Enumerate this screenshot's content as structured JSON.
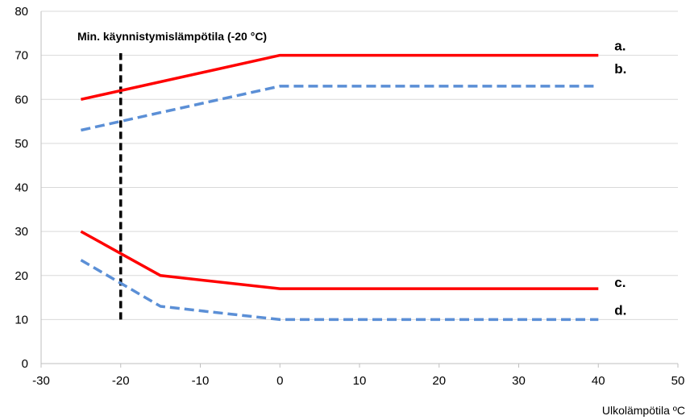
{
  "chart_data": {
    "type": "line",
    "xlabel": "Ulkolämpötila ºC",
    "ylabel": "",
    "xlim": [
      -30,
      50
    ],
    "ylim": [
      0,
      80
    ],
    "x_ticks": [
      -30,
      -20,
      -10,
      0,
      10,
      20,
      30,
      40,
      50
    ],
    "y_ticks": [
      0,
      10,
      20,
      30,
      40,
      50,
      60,
      70,
      80
    ],
    "grid": "horizontal",
    "series": [
      {
        "name": "a.",
        "style": "solid",
        "color": "#ff0000",
        "points": [
          [
            -25,
            60
          ],
          [
            0,
            70
          ],
          [
            40,
            70
          ]
        ]
      },
      {
        "name": "b.",
        "style": "dashed",
        "color": "#5b8fd6",
        "points": [
          [
            -25,
            53
          ],
          [
            -15,
            57
          ],
          [
            0,
            63
          ],
          [
            40,
            63
          ]
        ]
      },
      {
        "name": "c.",
        "style": "solid",
        "color": "#ff0000",
        "points": [
          [
            -25,
            30
          ],
          [
            -15,
            20
          ],
          [
            0,
            17
          ],
          [
            40,
            17
          ]
        ]
      },
      {
        "name": "d.",
        "style": "dashed",
        "color": "#5b8fd6",
        "points": [
          [
            -25,
            23.5
          ],
          [
            -15,
            13
          ],
          [
            0,
            10
          ],
          [
            40,
            10
          ]
        ]
      }
    ],
    "annotations": [
      {
        "text": "Min. käynnistymislämpötila (-20 °C)",
        "x": -20,
        "y_from": 10,
        "y_to": 80,
        "style": "dashed",
        "color": "#000000"
      }
    ]
  }
}
